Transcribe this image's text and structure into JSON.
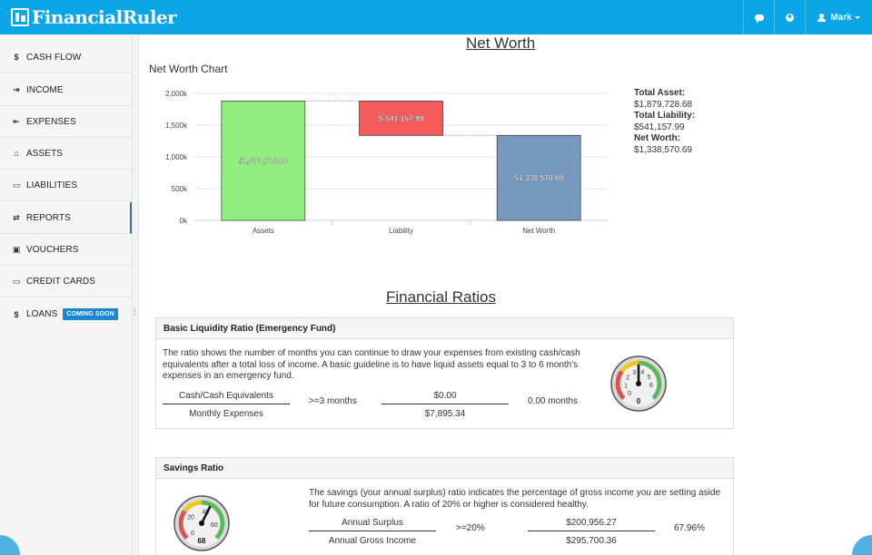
{
  "header": {
    "logo": "FinancialRuler",
    "user_menu_label": "Mark",
    "icons": [
      "chat-icon",
      "globe-icon",
      "user-icon"
    ]
  },
  "sidebar": {
    "items": [
      {
        "label": "CASH FLOW",
        "icon": "dollar-icon"
      },
      {
        "label": "INCOME",
        "icon": "sign-in-icon"
      },
      {
        "label": "EXPENSES",
        "icon": "sign-out-icon"
      },
      {
        "label": "ASSETS",
        "icon": "home-icon"
      },
      {
        "label": "LIABILITIES",
        "icon": "card-icon"
      },
      {
        "label": "REPORTS",
        "icon": "exchange-icon"
      },
      {
        "label": "VOUCHERS",
        "icon": "ticket-icon"
      },
      {
        "label": "CREDIT CARDS",
        "icon": "credit-card-icon"
      },
      {
        "label": "LOANS",
        "icon": "dollar-icon",
        "badge": "COMING SOON"
      }
    ],
    "active_index": 5
  },
  "net_worth": {
    "title": "Net Worth",
    "chart_label": "Net Worth Chart",
    "summary": {
      "total_asset_label": "Total Asset:",
      "total_asset_value": "$1,879,728.68",
      "total_liability_label": "Total Liability:",
      "total_liability_value": "$541,157.99",
      "net_worth_label": "Net Worth:",
      "net_worth_value": "$1,338,570.69"
    }
  },
  "chart_data": {
    "type": "bar",
    "subtype": "waterfall",
    "categories": [
      "Assets",
      "Liability",
      "Net Worth"
    ],
    "values": [
      1879728.68,
      -541157.99,
      1338570.69
    ],
    "data_labels": [
      "$1,879,728.68",
      "$-541,157.99",
      "$1,338,570.69"
    ],
    "colors": [
      "#90ee7e",
      "#f45b5b",
      "#7798bf"
    ],
    "yticks": [
      "0k",
      "500k",
      "1,000k",
      "1,500k",
      "2,000k"
    ],
    "ylim": [
      0,
      2000000
    ],
    "grid": true
  },
  "ratios": {
    "title": "Financial Ratios",
    "liquidity": {
      "heading": "Basic Liquidity Ratio (Emergency Fund)",
      "description": "The ratio shows the number of months you can continue to draw your expenses from existing cash/cash equivalents after a total loss of income. A basic guideline is to have liquid assets equal to 3 to 6 month's expenses in an emergency fund.",
      "numerator_label": "Cash/Cash Equivalents",
      "denominator_label": "Monthly Expenses",
      "target": ">=3 months",
      "numerator_value": "$0.00",
      "denominator_value": "$7,895.34",
      "result": "0.00 months",
      "gauge": {
        "value": 0,
        "ticks": [
          "0",
          "1",
          "2",
          "3",
          "4",
          "5",
          "6"
        ],
        "readout": "0"
      }
    },
    "savings": {
      "heading": "Savings Ratio",
      "description": "The savings (your annual surplus) ratio indicates the percentage of gross income you are setting aside for future consumption. A ratio of 20% or higher is considered healthy.",
      "numerator_label": "Annual Surplus",
      "denominator_label": "Annual Gross Income",
      "target": ">=20%",
      "numerator_value": "$200,956.27",
      "denominator_value": "$295,700.36",
      "result": "67.96%",
      "gauge": {
        "value": 68,
        "ticks": [
          "0",
          "20",
          "40",
          "60"
        ],
        "readout": "68"
      }
    }
  }
}
